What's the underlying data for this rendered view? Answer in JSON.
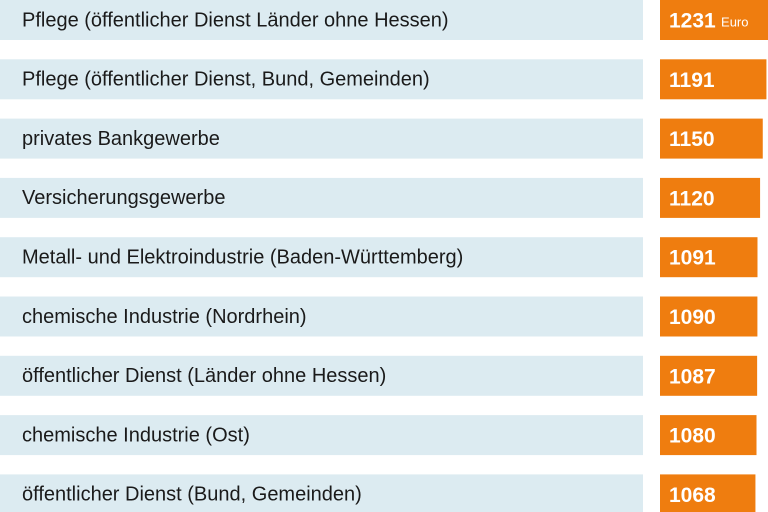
{
  "chart_data": {
    "type": "bar",
    "orientation": "horizontal",
    "categories": [
      "Pflege (öffentlicher Dienst Länder ohne Hessen)",
      "Pflege (öffentlicher Dienst, Bund, Gemeinden)",
      "privates Bankgewerbe",
      "Versicherungsgewerbe",
      "Metall- und Elektroindustrie (Baden-Württemberg)",
      "chemische Industrie (Nordrhein)",
      "öffentlicher Dienst (Länder ohne Hessen)",
      "chemische Industrie (Ost)",
      "öffentlicher Dienst (Bund, Gemeinden)"
    ],
    "values": [
      1231,
      1191,
      1150,
      1120,
      1091,
      1090,
      1087,
      1080,
      1068
    ],
    "unit": "Euro",
    "color": "#ef7d0f"
  }
}
